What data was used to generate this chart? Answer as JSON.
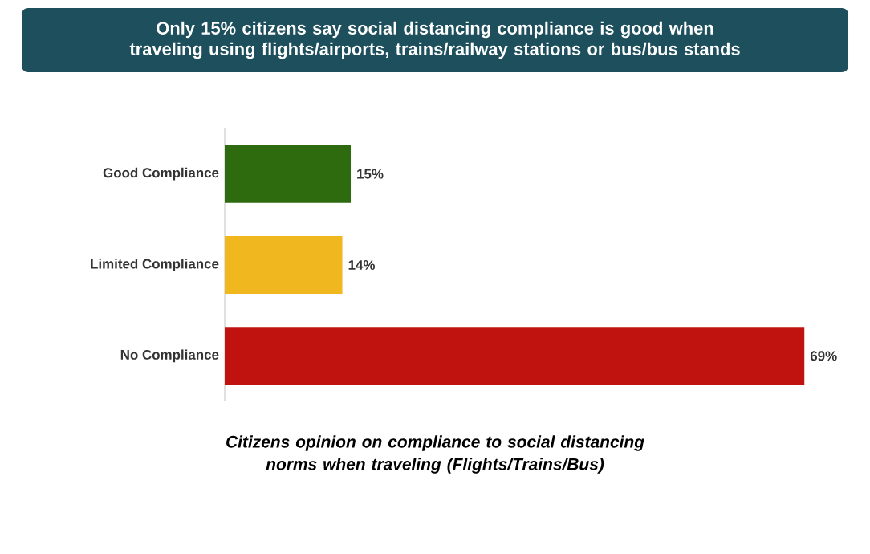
{
  "chart_data": {
    "type": "bar",
    "orientation": "horizontal",
    "title": "Only 15% citizens say social distancing compliance is good when traveling using flights/airports, trains/railway stations or bus/bus stands",
    "xlabel": "Citizens opinion on compliance to social distancing norms when traveling (Flights/Trains/Bus)",
    "categories": [
      "Good Compliance",
      "Limited Compliance",
      "No Compliance"
    ],
    "values": [
      15,
      14,
      69
    ],
    "colors": [
      "#2e6b0f",
      "#f0b81e",
      "#c0130f"
    ],
    "value_labels": [
      "15%",
      "14%",
      "69%"
    ]
  }
}
